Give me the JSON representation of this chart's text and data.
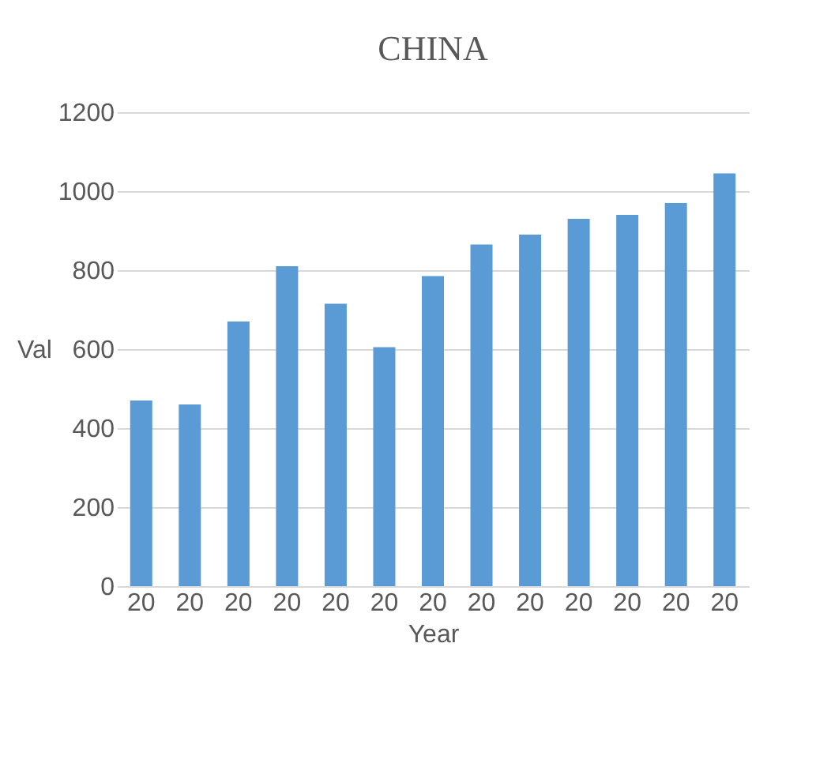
{
  "chart_data": {
    "type": "bar",
    "title": "CHINA",
    "xlabel": "Year",
    "ylabel": "Val",
    "categories": [
      "20",
      "20",
      "20",
      "20",
      "20",
      "20",
      "20",
      "20",
      "20",
      "20",
      "20",
      "20",
      "20"
    ],
    "values": [
      470,
      460,
      670,
      810,
      715,
      605,
      785,
      865,
      890,
      930,
      940,
      970,
      1045
    ],
    "color": "#5b9bd5",
    "ylim": [
      0,
      1200
    ],
    "yticks": [
      0,
      200,
      400,
      600,
      800,
      1000,
      1200
    ],
    "grid": "y"
  }
}
